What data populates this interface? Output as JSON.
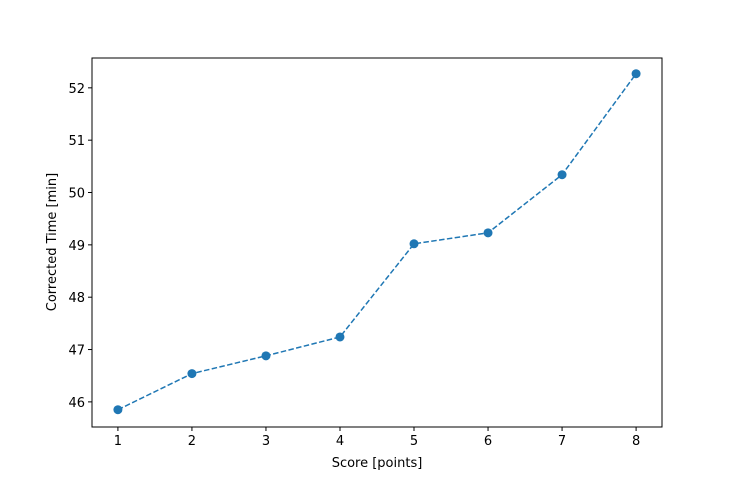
{
  "chart_data": {
    "type": "line",
    "title": "",
    "xlabel": "Score [points]",
    "ylabel": "Corrected Time [min]",
    "x": [
      1,
      2,
      3,
      4,
      5,
      6,
      7,
      8
    ],
    "series": [
      {
        "values": [
          45.85,
          46.54,
          46.88,
          47.24,
          49.02,
          49.23,
          50.34,
          52.27
        ],
        "color": "#1f77b4",
        "linestyle": "dashed",
        "marker": "circle"
      }
    ],
    "xlim": [
      0.65,
      8.35
    ],
    "ylim": [
      45.52,
      52.57
    ],
    "xticks": [
      "1",
      "2",
      "3",
      "4",
      "5",
      "6",
      "7",
      "8"
    ],
    "yticks": [
      "46",
      "47",
      "48",
      "49",
      "50",
      "51",
      "52"
    ],
    "grid": false
  }
}
